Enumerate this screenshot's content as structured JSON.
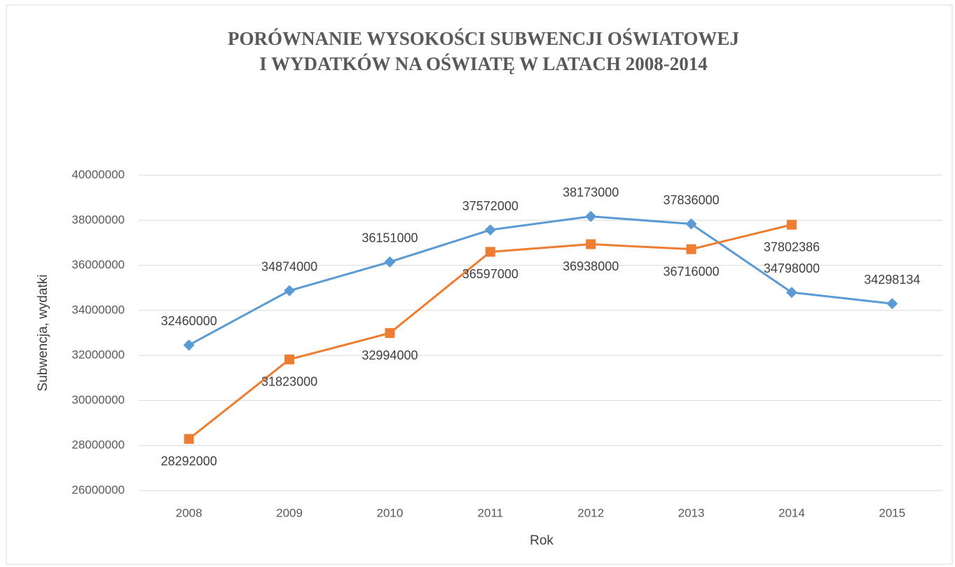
{
  "chart_data": {
    "type": "line",
    "title": [
      "PORÓWNANIE WYSOKOŚCI  SUBWENCJI OŚWIATOWEJ",
      "I WYDATKÓW  NA OŚWIATĘ  W LATACH  2008-2014"
    ],
    "y_label": "Subwencja, wydatki",
    "x_label": "Rok",
    "categories": [
      "2008",
      "2009",
      "2010",
      "2011",
      "2012",
      "2013",
      "2014",
      "2015"
    ],
    "series": [
      {
        "color": "#5b9bd5",
        "marker": "diamond",
        "values": [
          32460000,
          34874000,
          36151000,
          37572000,
          38173000,
          37836000,
          34798000,
          34298134
        ]
      },
      {
        "color": "#ed7d31",
        "marker": "square",
        "values": [
          28292000,
          31823000,
          32994000,
          36597000,
          36938000,
          36716000,
          37802386,
          null
        ]
      }
    ],
    "ylim": [
      26000000,
      40000000
    ],
    "yticks": [
      26000000,
      28000000,
      30000000,
      32000000,
      34000000,
      36000000,
      38000000,
      40000000
    ],
    "grid": true
  }
}
